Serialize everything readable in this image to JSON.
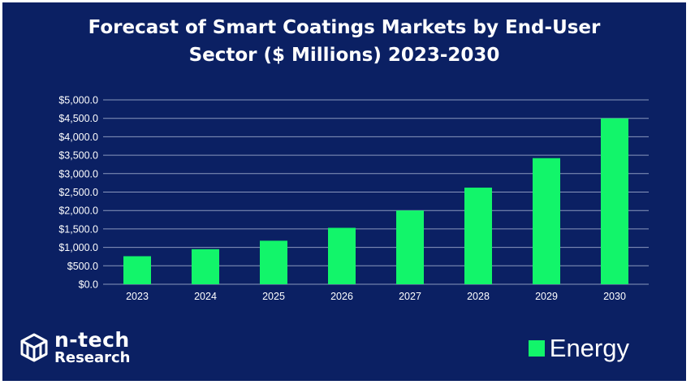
{
  "colors": {
    "background": "#0b2063",
    "bar": "#12f56a",
    "grid": "#8a97bd",
    "text": "#ffffff"
  },
  "logo": {
    "icon": "n-tech-cube-logo-icon",
    "line1": "n-tech",
    "line2": "Research"
  },
  "chart_data": {
    "type": "bar",
    "title_lines": [
      "Forecast of Smart Coatings Markets by End-User",
      "Sector ($ Millions) 2023-2030"
    ],
    "categories": [
      "2023",
      "2024",
      "2025",
      "2026",
      "2027",
      "2028",
      "2029",
      "2030"
    ],
    "series": [
      {
        "name": "Energy",
        "values": [
          760,
          950,
          1180,
          1530,
          2000,
          2620,
          3420,
          4500
        ]
      }
    ],
    "y_ticks": [
      "$0.0",
      "$500.0",
      "$1,000.0",
      "$1,500.0",
      "$2,000.0",
      "$2,500.0",
      "$3,000.0",
      "$3,500.0",
      "$4,000.0",
      "$4,500.0",
      "$5,000.0"
    ],
    "ylim": [
      0,
      5000
    ],
    "ystep": 500,
    "xlabel": "",
    "ylabel": "",
    "grid": true,
    "legend_position": "bottom-right"
  }
}
